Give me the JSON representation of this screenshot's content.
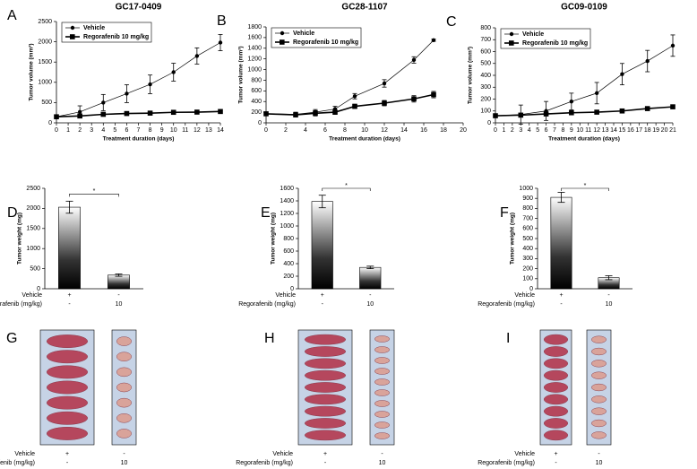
{
  "chart_data": [
    {
      "type": "line",
      "panel": "A",
      "title": "GC17-0409",
      "x_label": "Treatment duration (days)",
      "y_label": "Tumor volume (mm³)",
      "xlim": [
        0,
        14
      ],
      "xticks": [
        0,
        1,
        2,
        3,
        4,
        5,
        6,
        7,
        8,
        9,
        10,
        11,
        12,
        13,
        14
      ],
      "ylim": [
        0,
        2500
      ],
      "yticks": [
        0,
        500,
        1000,
        1500,
        2000,
        2500
      ],
      "legend": "upper left",
      "series": [
        {
          "name": "Vehicle",
          "color": "#000000",
          "marker": "circle",
          "x": [
            0,
            2,
            4,
            6,
            8,
            10,
            12,
            14
          ],
          "values": [
            150,
            270,
            500,
            720,
            950,
            1250,
            1650,
            1980
          ],
          "errors": [
            20,
            150,
            200,
            220,
            230,
            220,
            200,
            200
          ]
        },
        {
          "name": "Regorafenib 10 mg/kg",
          "color": "#000000",
          "marker": "square",
          "x": [
            0,
            2,
            4,
            6,
            8,
            10,
            12,
            14
          ],
          "values": [
            150,
            170,
            210,
            230,
            240,
            260,
            265,
            280
          ],
          "errors": [
            20,
            20,
            20,
            20,
            20,
            20,
            20,
            20
          ]
        }
      ]
    },
    {
      "type": "line",
      "panel": "B",
      "title": "GC28-1107",
      "x_label": "Treatment duration (days)",
      "y_label": "Tumor volume (mm³)",
      "xlim": [
        0,
        20
      ],
      "xticks": [
        0,
        2,
        4,
        6,
        8,
        10,
        12,
        14,
        16,
        18,
        20
      ],
      "ylim": [
        0,
        1800
      ],
      "yticks": [
        0,
        200,
        400,
        600,
        800,
        1000,
        1200,
        1400,
        1600,
        1800
      ],
      "legend": "upper left",
      "series": [
        {
          "name": "Vehicle",
          "color": "#000000",
          "marker": "circle",
          "x": [
            0,
            3,
            5,
            7,
            9,
            12,
            15,
            17
          ],
          "values": [
            170,
            160,
            200,
            260,
            500,
            740,
            1180,
            1550
          ],
          "errors": [
            30,
            40,
            50,
            50,
            50,
            70,
            60,
            20
          ]
        },
        {
          "name": "Regorafenib 10 mg/kg",
          "color": "#000000",
          "marker": "square",
          "x": [
            0,
            3,
            5,
            7,
            9,
            12,
            15,
            17
          ],
          "values": [
            170,
            150,
            180,
            200,
            310,
            370,
            450,
            530
          ],
          "errors": [
            30,
            40,
            50,
            40,
            40,
            50,
            60,
            60
          ]
        }
      ]
    },
    {
      "type": "line",
      "panel": "C",
      "title": "GC09-0109",
      "x_label": "Treatment duration (days)",
      "y_label": "Tumor volume (mm³)",
      "xlim": [
        0,
        21
      ],
      "xticks": [
        0,
        1,
        2,
        3,
        4,
        5,
        6,
        7,
        8,
        9,
        10,
        11,
        12,
        13,
        14,
        15,
        16,
        17,
        18,
        19,
        20,
        21
      ],
      "ylim": [
        0,
        800
      ],
      "yticks": [
        0,
        100,
        200,
        300,
        400,
        500,
        600,
        700,
        800
      ],
      "legend": "upper left",
      "series": [
        {
          "name": "Vehicle",
          "color": "#000000",
          "marker": "circle",
          "x": [
            0,
            3,
            6,
            9,
            12,
            15,
            18,
            21
          ],
          "values": [
            60,
            70,
            100,
            180,
            250,
            410,
            520,
            650
          ],
          "errors": [
            10,
            80,
            80,
            70,
            90,
            90,
            90,
            90
          ]
        },
        {
          "name": "Regorafenib 10 mg/kg",
          "color": "#000000",
          "marker": "square",
          "x": [
            0,
            3,
            6,
            9,
            12,
            15,
            18,
            21
          ],
          "values": [
            60,
            65,
            75,
            85,
            90,
            100,
            120,
            135
          ],
          "errors": [
            10,
            10,
            10,
            10,
            10,
            10,
            10,
            15
          ]
        }
      ]
    },
    {
      "type": "bar",
      "panel": "D",
      "y_label": "Tumor weight (mg)",
      "ylim": [
        0,
        2500
      ],
      "yticks": [
        0,
        500,
        1000,
        1500,
        2000,
        2500
      ],
      "values": [
        2030,
        340
      ],
      "errors": [
        150,
        30
      ],
      "significance": "*",
      "treatment_rows": [
        {
          "label": "Vehicle",
          "values": [
            "+",
            "-"
          ]
        },
        {
          "label": "Regorafenib (mg/kg)",
          "values": [
            "-",
            "10"
          ]
        }
      ]
    },
    {
      "type": "bar",
      "panel": "E",
      "y_label": "Tumor weight (mg)",
      "ylim": [
        0,
        1600
      ],
      "yticks": [
        0,
        200,
        400,
        600,
        800,
        1000,
        1200,
        1400,
        1600
      ],
      "values": [
        1390,
        340
      ],
      "errors": [
        100,
        20
      ],
      "significance": "*",
      "treatment_rows": [
        {
          "label": "Vehicle",
          "values": [
            "+",
            "-"
          ]
        },
        {
          "label": "Regorafenib (mg/kg)",
          "values": [
            "-",
            "10"
          ]
        }
      ]
    },
    {
      "type": "bar",
      "panel": "F",
      "y_label": "Tumor weight (mg)",
      "ylim": [
        0,
        1000
      ],
      "yticks": [
        0,
        100,
        200,
        300,
        400,
        500,
        600,
        700,
        800,
        900,
        1000
      ],
      "values": [
        910,
        110
      ],
      "errors": [
        50,
        20
      ],
      "significance": "*",
      "treatment_rows": [
        {
          "label": "Vehicle",
          "values": [
            "+",
            "-"
          ]
        },
        {
          "label": "Regorafenib (mg/kg)",
          "values": [
            "-",
            "10"
          ]
        }
      ]
    }
  ],
  "photo_panels": [
    {
      "panel": "G",
      "treatment_rows": [
        {
          "label": "Vehicle",
          "values": [
            "+",
            "-"
          ]
        },
        {
          "label": "Regorafenib (mg/kg)",
          "values": [
            "-",
            "10"
          ]
        }
      ]
    },
    {
      "panel": "H",
      "treatment_rows": [
        {
          "label": "Vehicle",
          "values": [
            "+",
            "-"
          ]
        },
        {
          "label": "Regorafenib (mg/kg)",
          "values": [
            "-",
            "10"
          ]
        }
      ]
    },
    {
      "panel": "I",
      "treatment_rows": [
        {
          "label": "Vehicle",
          "values": [
            "+",
            "-"
          ]
        },
        {
          "label": "Regorafenib (mg/kg)",
          "values": [
            "-",
            "10"
          ]
        }
      ]
    }
  ]
}
